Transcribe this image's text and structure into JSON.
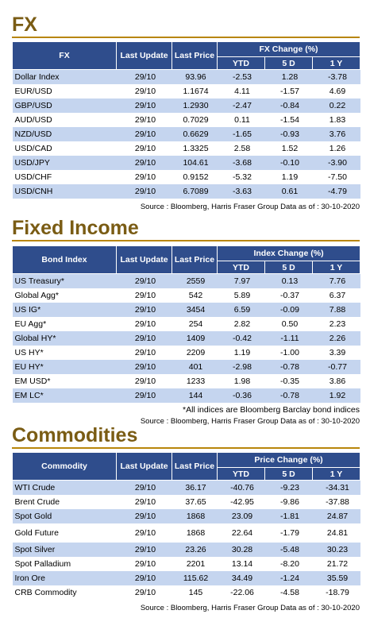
{
  "fx": {
    "title": "FX",
    "headers": {
      "name": "FX",
      "last_update": "Last Update",
      "last_price": "Last Price",
      "group": "FX Change (%)",
      "ytd": "YTD",
      "d5": "5 D",
      "y1": "1 Y"
    },
    "rows": [
      {
        "name": "Dollar Index",
        "update": "29/10",
        "price": "93.96",
        "ytd": "-2.53",
        "d5": "1.28",
        "y1": "-3.78"
      },
      {
        "name": "EUR/USD",
        "update": "29/10",
        "price": "1.1674",
        "ytd": "4.11",
        "d5": "-1.57",
        "y1": "4.69"
      },
      {
        "name": "GBP/USD",
        "update": "29/10",
        "price": "1.2930",
        "ytd": "-2.47",
        "d5": "-0.84",
        "y1": "0.22"
      },
      {
        "name": "AUD/USD",
        "update": "29/10",
        "price": "0.7029",
        "ytd": "0.11",
        "d5": "-1.54",
        "y1": "1.83"
      },
      {
        "name": "NZD/USD",
        "update": "29/10",
        "price": "0.6629",
        "ytd": "-1.65",
        "d5": "-0.93",
        "y1": "3.76"
      },
      {
        "name": "USD/CAD",
        "update": "29/10",
        "price": "1.3325",
        "ytd": "2.58",
        "d5": "1.52",
        "y1": "1.26"
      },
      {
        "name": "USD/JPY",
        "update": "29/10",
        "price": "104.61",
        "ytd": "-3.68",
        "d5": "-0.10",
        "y1": "-3.90"
      },
      {
        "name": "USD/CHF",
        "update": "29/10",
        "price": "0.9152",
        "ytd": "-5.32",
        "d5": "1.19",
        "y1": "-7.50"
      },
      {
        "name": "USD/CNH",
        "update": "29/10",
        "price": "6.7089",
        "ytd": "-3.63",
        "d5": "0.61",
        "y1": "-4.79"
      }
    ],
    "source": "Source : Bloomberg, Harris Fraser Group Data as of : 30-10-2020"
  },
  "fixed_income": {
    "title": "Fixed Income",
    "headers": {
      "name": "Bond Index",
      "last_update": "Last Update",
      "last_price": "Last Price",
      "group": "Index Change (%)",
      "ytd": "YTD",
      "d5": "5 D",
      "y1": "1 Y"
    },
    "rows": [
      {
        "name": "US Treasury*",
        "update": "29/10",
        "price": "2559",
        "ytd": "7.97",
        "d5": "0.13",
        "y1": "7.76"
      },
      {
        "name": "Global Agg*",
        "update": "29/10",
        "price": "542",
        "ytd": "5.89",
        "d5": "-0.37",
        "y1": "6.37"
      },
      {
        "name": "US IG*",
        "update": "29/10",
        "price": "3454",
        "ytd": "6.59",
        "d5": "-0.09",
        "y1": "7.88"
      },
      {
        "name": "EU Agg*",
        "update": "29/10",
        "price": "254",
        "ytd": "2.82",
        "d5": "0.50",
        "y1": "2.23"
      },
      {
        "name": "Global HY*",
        "update": "29/10",
        "price": "1409",
        "ytd": "-0.42",
        "d5": "-1.11",
        "y1": "2.26"
      },
      {
        "name": "US HY*",
        "update": "29/10",
        "price": "2209",
        "ytd": "1.19",
        "d5": "-1.00",
        "y1": "3.39"
      },
      {
        "name": "EU HY*",
        "update": "29/10",
        "price": "401",
        "ytd": "-2.98",
        "d5": "-0.78",
        "y1": "-0.77"
      },
      {
        "name": "EM USD*",
        "update": "29/10",
        "price": "1233",
        "ytd": "1.98",
        "d5": "-0.35",
        "y1": "3.86"
      },
      {
        "name": "EM LC*",
        "update": "29/10",
        "price": "144",
        "ytd": "-0.36",
        "d5": "-0.78",
        "y1": "1.92"
      }
    ],
    "note": "*All indices are Bloomberg Barclay bond indices",
    "source": "Source : Bloomberg, Harris Fraser Group Data as of : 30-10-2020"
  },
  "commodities": {
    "title": "Commodities",
    "headers": {
      "name": "Commodity",
      "last_update": "Last Update",
      "last_price": "Last Price",
      "group": "Price Change (%)",
      "ytd": "YTD",
      "d5": "5 D",
      "y1": "1 Y"
    },
    "rows": [
      {
        "name": "WTI Crude",
        "update": "29/10",
        "price": "36.17",
        "ytd": "-40.76",
        "d5": "-9.23",
        "y1": "-34.31"
      },
      {
        "name": "Brent Crude",
        "update": "29/10",
        "price": "37.65",
        "ytd": "-42.95",
        "d5": "-9.86",
        "y1": "-37.88"
      },
      {
        "name": "Spot Gold",
        "update": "29/10",
        "price": "1868",
        "ytd": "23.09",
        "d5": "-1.81",
        "y1": "24.87"
      },
      {
        "name": "Gold Future",
        "update": "29/10",
        "price": "1868",
        "ytd": "22.64",
        "d5": "-1.79",
        "y1": "24.81"
      },
      {
        "name": "Spot Silver",
        "update": "29/10",
        "price": "23.26",
        "ytd": "30.28",
        "d5": "-5.48",
        "y1": "30.23"
      },
      {
        "name": "Spot Palladium",
        "update": "29/10",
        "price": "2201",
        "ytd": "13.14",
        "d5": "-8.20",
        "y1": "21.72"
      },
      {
        "name": "Iron Ore",
        "update": "29/10",
        "price": "115.62",
        "ytd": "34.49",
        "d5": "-1.24",
        "y1": "35.59"
      },
      {
        "name": "CRB Commodity",
        "update": "29/10",
        "price": "145",
        "ytd": "-22.06",
        "d5": "-4.58",
        "y1": "-18.79"
      }
    ],
    "source": "Source : Bloomberg, Harris Fraser Group Data as of : 30-10-2020"
  }
}
